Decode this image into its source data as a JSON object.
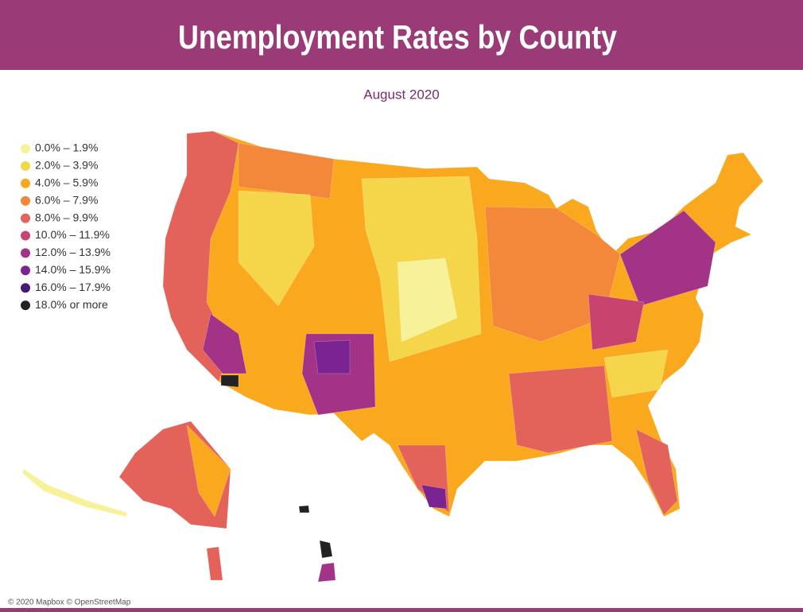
{
  "header": {
    "title": "Unemployment Rates by County"
  },
  "subtitle": "August 2020",
  "legend": [
    {
      "label": "0.0% – 1.9%",
      "color": "#f7f29a"
    },
    {
      "label": "2.0% – 3.9%",
      "color": "#f5d64a"
    },
    {
      "label": "4.0% – 5.9%",
      "color": "#faa91f"
    },
    {
      "label": "6.0% – 7.9%",
      "color": "#f3873a"
    },
    {
      "label": "8.0% – 9.9%",
      "color": "#e3625a"
    },
    {
      "label": "10.0% – 11.9%",
      "color": "#c8446f"
    },
    {
      "label": "12.0% – 13.9%",
      "color": "#a23386"
    },
    {
      "label": "14.0% – 15.9%",
      "color": "#7a2392"
    },
    {
      "label": "16.0% – 17.9%",
      "color": "#471a78"
    },
    {
      "label": "18.0% or more",
      "color": "#222222"
    }
  ],
  "attribution": "© 2020 Mapbox © OpenStreetMap"
}
